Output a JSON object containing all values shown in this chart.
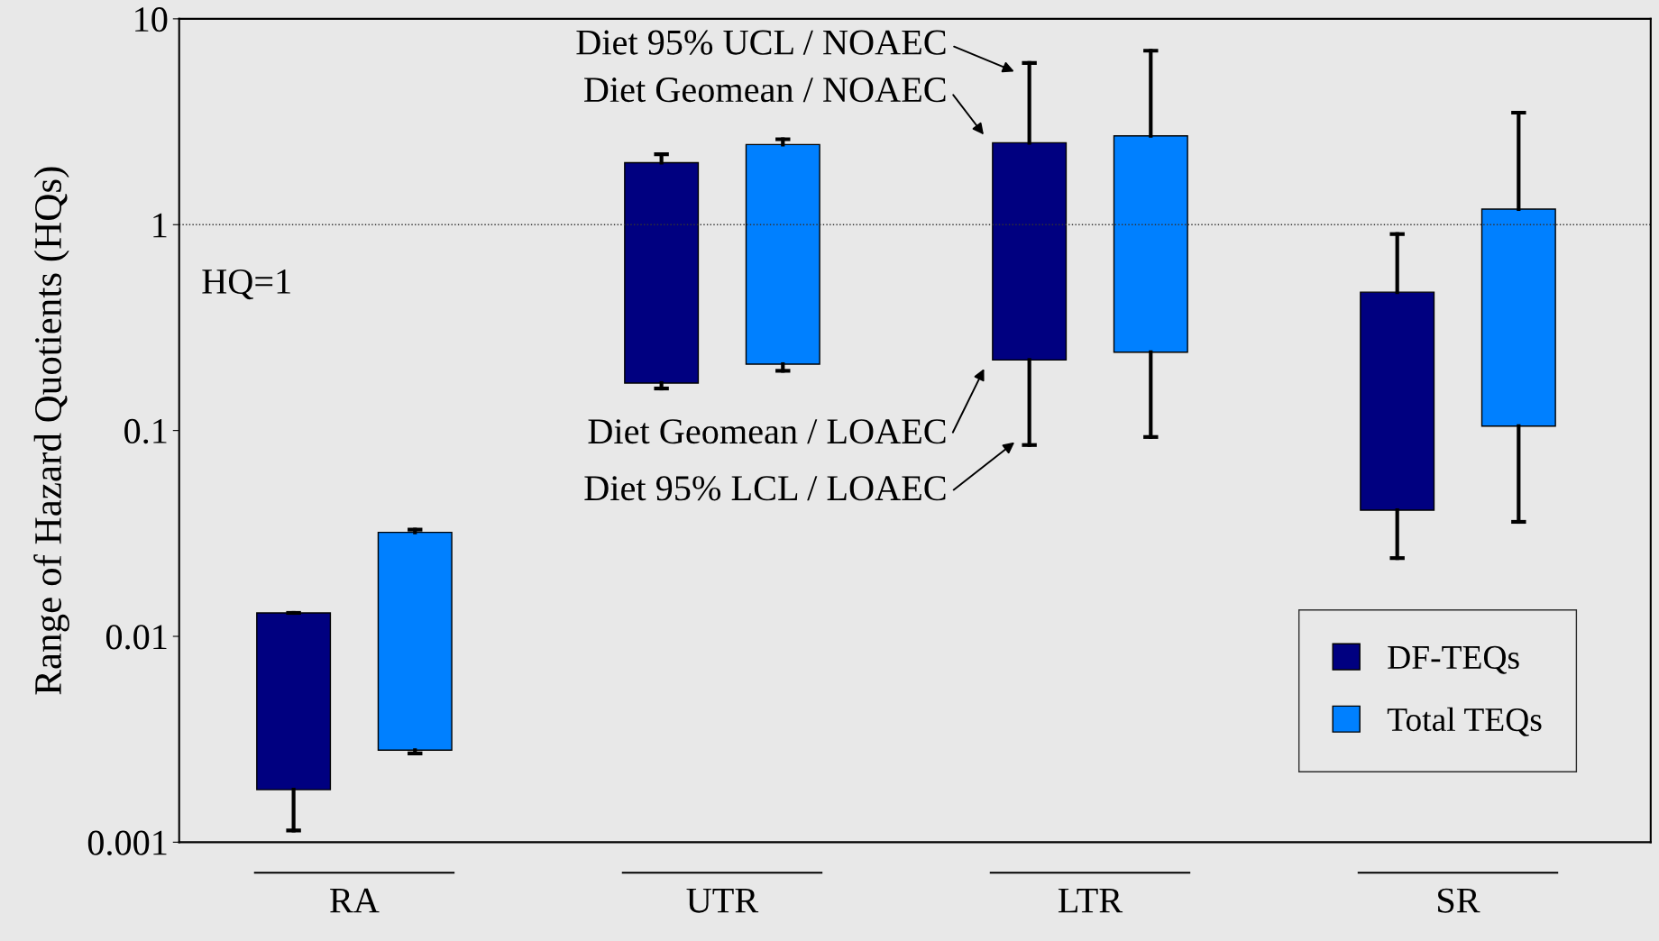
{
  "chart_data": {
    "type": "box",
    "ylabel": "Range of Hazard Quotients (HQs)",
    "categories": [
      "RA",
      "UTR",
      "LTR",
      "SR"
    ],
    "series": [
      {
        "name": "DF-TEQs",
        "color": "#000080",
        "boxes": [
          {
            "low": 0.00114,
            "q1": 0.0018,
            "q3": 0.013,
            "high": 0.013
          },
          {
            "low": 0.16,
            "q1": 0.17,
            "q3": 2.0,
            "high": 2.2
          },
          {
            "low": 0.085,
            "q1": 0.22,
            "q3": 2.5,
            "high": 6.1
          },
          {
            "low": 0.024,
            "q1": 0.041,
            "q3": 0.47,
            "high": 0.9
          }
        ]
      },
      {
        "name": "Total TEQs",
        "color": "#0080ff",
        "boxes": [
          {
            "low": 0.0027,
            "q1": 0.0028,
            "q3": 0.032,
            "high": 0.033
          },
          {
            "low": 0.195,
            "q1": 0.21,
            "q3": 2.45,
            "high": 2.6
          },
          {
            "low": 0.093,
            "q1": 0.24,
            "q3": 2.7,
            "high": 7.0
          },
          {
            "low": 0.036,
            "q1": 0.105,
            "q3": 1.19,
            "high": 3.5
          }
        ]
      }
    ],
    "log": "y",
    "ylim": [
      0.001,
      10
    ],
    "yticks": [
      0.001,
      0.01,
      0.1,
      1,
      10
    ],
    "ref_lines": [
      {
        "axis": "y",
        "value": 1,
        "label": "HQ=1",
        "color": "#333333",
        "line_style": "dotted"
      }
    ],
    "annotations": [
      "Diet 95% UCL / NOAEC",
      "Diet Geomean / NOAEC",
      "Diet Geomean / LOAEC",
      "Diet 95% LCL / LOAEC"
    ],
    "grid": false,
    "legend": "bottom right"
  }
}
